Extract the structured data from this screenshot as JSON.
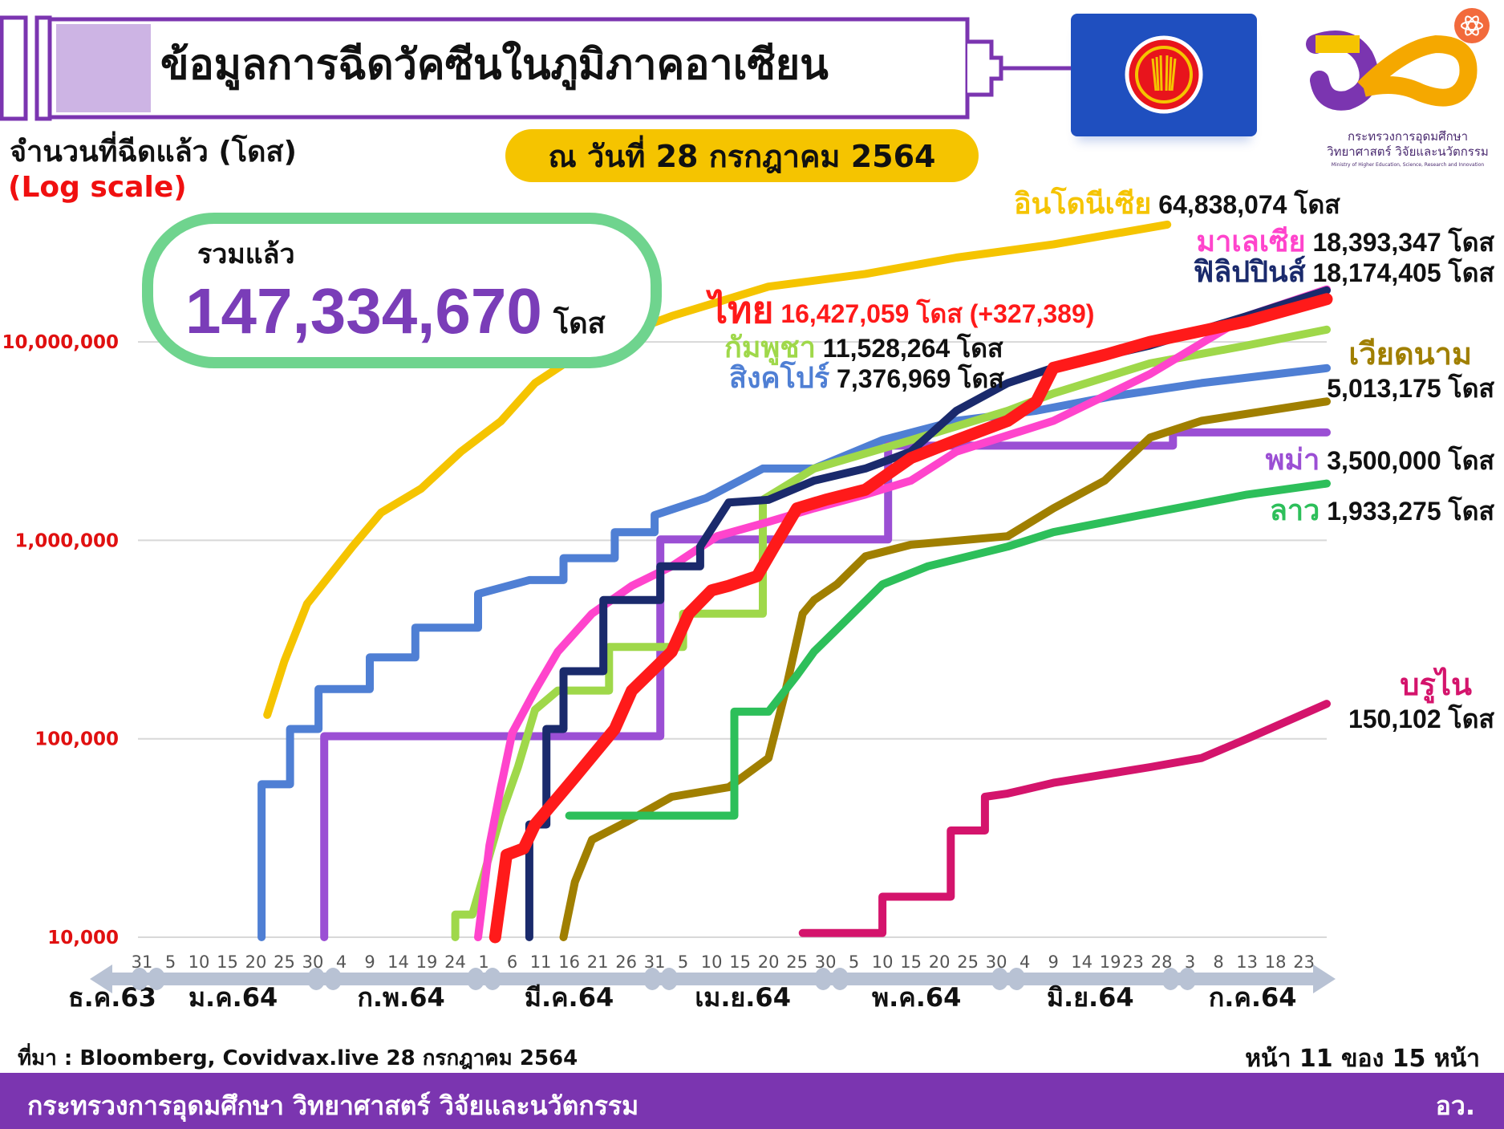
{
  "header": {
    "title": "ข้อมูลการฉีดวัคซีนในภูมิภาคอาเซียน",
    "date": "ณ วันที่ 28 กรกฎาคม 2564",
    "logo_text": [
      "กระทรวงการอุดมศึกษา",
      "วิทยาศาสตร์ วิจัยและนวัตกรรม",
      "Ministry of Higher Education, Science, Research and Innovation"
    ]
  },
  "total": {
    "label": "รวมแล้ว",
    "value": "147,334,670",
    "unit": "โดส"
  },
  "footer": {
    "source": "ที่มา : Bloomberg, Covidvax.live 28 กรกฎาคม 2564",
    "page": "หน้า 11 ของ 15 หน้า",
    "ministry": "กระทรวงการอุดมศึกษา วิทยาศาสตร์ วิจัยและนวัตกรรม",
    "abbr": "อว."
  },
  "colors": {
    "brand_purple": "#7b35b0",
    "total_border": "#6fd48e",
    "date_pill": "#f5c400",
    "asean_blue": "#1f4fbf"
  },
  "chart_data": {
    "type": "line",
    "ylabel": "จำนวนที่ฉีดแล้ว (โดส)",
    "yscale_note": "(Log scale)",
    "yscale": "log",
    "ylim": [
      10000,
      100000000
    ],
    "grid": true,
    "y_ticks": [
      {
        "value": 10000,
        "label": "10,000"
      },
      {
        "value": 100000,
        "label": "100,000"
      },
      {
        "value": 1000000,
        "label": "1,000,000"
      },
      {
        "value": 10000000,
        "label": "10,000,000"
      }
    ],
    "x_range": [
      "2020-12-31",
      "2021-07-27"
    ],
    "x_ticks": [
      {
        "date": "2020-12-31",
        "label": "31"
      },
      {
        "date": "2021-01-05",
        "label": "5"
      },
      {
        "date": "2021-01-10",
        "label": "10"
      },
      {
        "date": "2021-01-15",
        "label": "15"
      },
      {
        "date": "2021-01-20",
        "label": "20"
      },
      {
        "date": "2021-01-25",
        "label": "25"
      },
      {
        "date": "2021-01-30",
        "label": "30"
      },
      {
        "date": "2021-02-04",
        "label": "4"
      },
      {
        "date": "2021-02-09",
        "label": "9"
      },
      {
        "date": "2021-02-14",
        "label": "14"
      },
      {
        "date": "2021-02-19",
        "label": "19"
      },
      {
        "date": "2021-02-24",
        "label": "24"
      },
      {
        "date": "2021-03-01",
        "label": "1"
      },
      {
        "date": "2021-03-06",
        "label": "6"
      },
      {
        "date": "2021-03-11",
        "label": "11"
      },
      {
        "date": "2021-03-16",
        "label": "16"
      },
      {
        "date": "2021-03-21",
        "label": "21"
      },
      {
        "date": "2021-03-26",
        "label": "26"
      },
      {
        "date": "2021-03-31",
        "label": "31"
      },
      {
        "date": "2021-04-05",
        "label": "5"
      },
      {
        "date": "2021-04-10",
        "label": "10"
      },
      {
        "date": "2021-04-15",
        "label": "15"
      },
      {
        "date": "2021-04-20",
        "label": "20"
      },
      {
        "date": "2021-04-25",
        "label": "25"
      },
      {
        "date": "2021-04-30",
        "label": "30"
      },
      {
        "date": "2021-05-05",
        "label": "5"
      },
      {
        "date": "2021-05-10",
        "label": "10"
      },
      {
        "date": "2021-05-15",
        "label": "15"
      },
      {
        "date": "2021-05-20",
        "label": "20"
      },
      {
        "date": "2021-05-25",
        "label": "25"
      },
      {
        "date": "2021-05-30",
        "label": "30"
      },
      {
        "date": "2021-06-04",
        "label": "4"
      },
      {
        "date": "2021-06-09",
        "label": "9"
      },
      {
        "date": "2021-06-14",
        "label": "14"
      },
      {
        "date": "2021-06-19",
        "label": "19"
      },
      {
        "date": "2021-06-23",
        "label": "23"
      },
      {
        "date": "2021-06-28",
        "label": "28"
      },
      {
        "date": "2021-07-03",
        "label": "3"
      },
      {
        "date": "2021-07-08",
        "label": "8"
      },
      {
        "date": "2021-07-13",
        "label": "13"
      },
      {
        "date": "2021-07-18",
        "label": "18"
      },
      {
        "date": "2021-07-23",
        "label": "23"
      }
    ],
    "months": [
      {
        "label": "ธ.ค.63",
        "start": "2020-12-01",
        "end": "2020-12-31"
      },
      {
        "label": "ม.ค.64",
        "start": "2021-01-01",
        "end": "2021-01-31"
      },
      {
        "label": "ก.พ.64",
        "start": "2021-02-01",
        "end": "2021-02-28"
      },
      {
        "label": "มี.ค.64",
        "start": "2021-03-01",
        "end": "2021-03-31"
      },
      {
        "label": "เม.ย.64",
        "start": "2021-04-01",
        "end": "2021-04-30"
      },
      {
        "label": "พ.ค.64",
        "start": "2021-05-01",
        "end": "2021-05-31"
      },
      {
        "label": "มิ.ย.64",
        "start": "2021-06-01",
        "end": "2021-06-30"
      },
      {
        "label": "ก.ค.64",
        "start": "2021-07-01",
        "end": "2021-07-31"
      }
    ],
    "series": [
      {
        "key": "indonesia",
        "name": "อินโดนีเซีย",
        "total": "64,838,074",
        "unit": "โดส",
        "color": "#f5c400",
        "points": [
          [
            "2021-01-22",
            132000
          ],
          [
            "2021-01-25",
            246000
          ],
          [
            "2021-01-29",
            479000
          ],
          [
            "2021-02-06",
            933000
          ],
          [
            "2021-02-11",
            1380000
          ],
          [
            "2021-02-18",
            1820000
          ],
          [
            "2021-02-25",
            2800000
          ],
          [
            "2021-03-04",
            3980000
          ],
          [
            "2021-03-10",
            6200000
          ],
          [
            "2021-03-20",
            9600000
          ],
          [
            "2021-04-03",
            13500000
          ],
          [
            "2021-04-20",
            19000000
          ],
          [
            "2021-05-07",
            22000000
          ],
          [
            "2021-05-23",
            26600000
          ],
          [
            "2021-06-09",
            31000000
          ],
          [
            "2021-06-29",
            39000000
          ]
        ]
      },
      {
        "key": "singapore",
        "name": "สิงคโปร์",
        "total": "7,376,969",
        "unit": "โดส",
        "color": "#4f7fd4",
        "points": [
          [
            "2021-01-21",
            10000
          ],
          [
            "2021-01-21",
            59000
          ],
          [
            "2021-01-26",
            59000
          ],
          [
            "2021-01-26",
            112000
          ],
          [
            "2021-01-31",
            112000
          ],
          [
            "2021-01-31",
            178000
          ],
          [
            "2021-02-09",
            178000
          ],
          [
            "2021-02-09",
            257000
          ],
          [
            "2021-02-17",
            257000
          ],
          [
            "2021-02-17",
            363000
          ],
          [
            "2021-02-28",
            363000
          ],
          [
            "2021-02-28",
            537000
          ],
          [
            "2021-03-09",
            631000
          ],
          [
            "2021-03-15",
            631000
          ],
          [
            "2021-03-15",
            813000
          ],
          [
            "2021-03-24",
            813000
          ],
          [
            "2021-03-24",
            1100000
          ],
          [
            "2021-03-31",
            1100000
          ],
          [
            "2021-03-31",
            1340000
          ],
          [
            "2021-04-09",
            1630000
          ],
          [
            "2021-04-19",
            2300000
          ],
          [
            "2021-04-28",
            2300000
          ],
          [
            "2021-05-10",
            3200000
          ],
          [
            "2021-05-23",
            4000000
          ],
          [
            "2021-06-06",
            4500000
          ],
          [
            "2021-06-19",
            5300000
          ],
          [
            "2021-07-05",
            6200000
          ],
          [
            "2021-07-27",
            7376969
          ]
        ]
      },
      {
        "key": "myanmar",
        "name": "พม่า",
        "total": "3,500,000",
        "unit": "โดส",
        "color": "#9b4fd4",
        "points": [
          [
            "2021-02-01",
            10000
          ],
          [
            "2021-02-01",
            103000
          ],
          [
            "2021-04-01",
            103000
          ],
          [
            "2021-04-01",
            1010000
          ],
          [
            "2021-05-11",
            1010000
          ],
          [
            "2021-05-11",
            3000000
          ],
          [
            "2021-06-30",
            3000000
          ],
          [
            "2021-06-30",
            3500000
          ],
          [
            "2021-07-27",
            3500000
          ]
        ]
      },
      {
        "key": "cambodia",
        "name": "กัมพูชา",
        "total": "11,528,264",
        "unit": "โดส",
        "color": "#9fd84a",
        "points": [
          [
            "2021-02-24",
            10000
          ],
          [
            "2021-02-24",
            13000
          ],
          [
            "2021-02-27",
            13000
          ],
          [
            "2021-03-04",
            41000
          ],
          [
            "2021-03-07",
            72000
          ],
          [
            "2021-03-10",
            140000
          ],
          [
            "2021-03-14",
            175000
          ],
          [
            "2021-03-23",
            175000
          ],
          [
            "2021-03-23",
            290000
          ],
          [
            "2021-04-05",
            290000
          ],
          [
            "2021-04-05",
            427000
          ],
          [
            "2021-04-19",
            427000
          ],
          [
            "2021-04-19",
            1600000
          ],
          [
            "2021-04-28",
            2300000
          ],
          [
            "2021-05-15",
            3200000
          ],
          [
            "2021-06-01",
            4500000
          ],
          [
            "2021-06-09",
            5500000
          ],
          [
            "2021-06-26",
            7800000
          ],
          [
            "2021-07-13",
            9600000
          ],
          [
            "2021-07-27",
            11528264
          ]
        ]
      },
      {
        "key": "malaysia",
        "name": "มาเลเซีย",
        "total": "18,393,347",
        "unit": "โดส",
        "color": "#ff44cc",
        "points": [
          [
            "2021-02-28",
            10000
          ],
          [
            "2021-03-02",
            29000
          ],
          [
            "2021-03-04",
            57000
          ],
          [
            "2021-03-06",
            107000
          ],
          [
            "2021-03-10",
            175000
          ],
          [
            "2021-03-14",
            275000
          ],
          [
            "2021-03-20",
            427000
          ],
          [
            "2021-03-27",
            590000
          ],
          [
            "2021-04-03",
            740000
          ],
          [
            "2021-04-11",
            1050000
          ],
          [
            "2021-04-20",
            1240000
          ],
          [
            "2021-04-28",
            1450000
          ],
          [
            "2021-05-07",
            1700000
          ],
          [
            "2021-05-15",
            2000000
          ],
          [
            "2021-05-23",
            2800000
          ],
          [
            "2021-06-09",
            4000000
          ],
          [
            "2021-06-26",
            6900000
          ],
          [
            "2021-07-13",
            13500000
          ],
          [
            "2021-07-27",
            18393347
          ]
        ]
      },
      {
        "key": "vietnam",
        "name": "เวียดนาม",
        "total": "5,013,175",
        "unit": "โดส",
        "color": "#a07f00",
        "points": [
          [
            "2021-03-15",
            10000
          ],
          [
            "2021-03-17",
            19000
          ],
          [
            "2021-03-20",
            31000
          ],
          [
            "2021-03-26",
            38000
          ],
          [
            "2021-04-03",
            51000
          ],
          [
            "2021-04-13",
            57000
          ],
          [
            "2021-04-20",
            80000
          ],
          [
            "2021-04-23",
            175000
          ],
          [
            "2021-04-26",
            427000
          ],
          [
            "2021-04-28",
            500000
          ],
          [
            "2021-05-02",
            600000
          ],
          [
            "2021-05-07",
            830000
          ],
          [
            "2021-05-15",
            950000
          ],
          [
            "2021-06-01",
            1050000
          ],
          [
            "2021-06-09",
            1450000
          ],
          [
            "2021-06-18",
            2000000
          ],
          [
            "2021-06-26",
            3300000
          ],
          [
            "2021-07-05",
            4000000
          ],
          [
            "2021-07-27",
            5013175
          ]
        ]
      },
      {
        "key": "laos",
        "name": "ลาว",
        "total": "1,933,275",
        "unit": "โดส",
        "color": "#2dbf5a",
        "points": [
          [
            "2021-03-16",
            41000
          ],
          [
            "2021-04-14",
            41000
          ],
          [
            "2021-04-14",
            137000
          ],
          [
            "2021-04-20",
            137000
          ],
          [
            "2021-04-25",
            209000
          ],
          [
            "2021-04-28",
            275000
          ],
          [
            "2021-05-03",
            380000
          ],
          [
            "2021-05-10",
            600000
          ],
          [
            "2021-05-18",
            740000
          ],
          [
            "2021-06-01",
            930000
          ],
          [
            "2021-06-09",
            1100000
          ],
          [
            "2021-06-26",
            1370000
          ],
          [
            "2021-07-13",
            1700000
          ],
          [
            "2021-07-27",
            1933275
          ]
        ]
      },
      {
        "key": "brunei",
        "name": "บรูไน",
        "total": "150,102",
        "unit": "โดส",
        "color": "#d4146c",
        "points": [
          [
            "2021-04-26",
            10500
          ],
          [
            "2021-05-10",
            10500
          ],
          [
            "2021-05-10",
            16000
          ],
          [
            "2021-05-22",
            16000
          ],
          [
            "2021-05-22",
            34500
          ],
          [
            "2021-05-28",
            34500
          ],
          [
            "2021-05-28",
            51000
          ],
          [
            "2021-06-01",
            53000
          ],
          [
            "2021-06-09",
            60000
          ],
          [
            "2021-06-26",
            72000
          ],
          [
            "2021-07-05",
            80000
          ],
          [
            "2021-07-13",
            100000
          ],
          [
            "2021-07-27",
            150102
          ]
        ]
      },
      {
        "key": "philippines",
        "name": "ฟิลิปปินส์",
        "total": "18,174,405",
        "unit": "โดส",
        "color": "#1a2a6c",
        "points": [
          [
            "2021-03-09",
            10000
          ],
          [
            "2021-03-09",
            37000
          ],
          [
            "2021-03-12",
            37000
          ],
          [
            "2021-03-12",
            112000
          ],
          [
            "2021-03-15",
            112000
          ],
          [
            "2021-03-15",
            219000
          ],
          [
            "2021-03-22",
            219000
          ],
          [
            "2021-03-22",
            500000
          ],
          [
            "2021-04-01",
            500000
          ],
          [
            "2021-04-01",
            740000
          ],
          [
            "2021-04-08",
            740000
          ],
          [
            "2021-04-08",
            930000
          ],
          [
            "2021-04-13",
            1550000
          ],
          [
            "2021-04-20",
            1600000
          ],
          [
            "2021-04-28",
            2000000
          ],
          [
            "2021-05-07",
            2300000
          ],
          [
            "2021-05-15",
            2800000
          ],
          [
            "2021-05-23",
            4500000
          ],
          [
            "2021-06-01",
            6200000
          ],
          [
            "2021-06-09",
            7400000
          ],
          [
            "2021-06-26",
            9600000
          ],
          [
            "2021-07-13",
            13500000
          ],
          [
            "2021-07-27",
            18174405
          ]
        ]
      },
      {
        "key": "thailand",
        "name": "ไทย",
        "total": "16,427,059",
        "unit": "โดส",
        "daily_change": "(+327,389)",
        "color": "#ff1a1a",
        "points": [
          [
            "2021-03-03",
            10000
          ],
          [
            "2021-03-05",
            26000
          ],
          [
            "2021-03-08",
            28000
          ],
          [
            "2021-03-10",
            37000
          ],
          [
            "2021-03-17",
            64000
          ],
          [
            "2021-03-24",
            112000
          ],
          [
            "2021-03-27",
            175000
          ],
          [
            "2021-04-03",
            275000
          ],
          [
            "2021-04-06",
            427000
          ],
          [
            "2021-04-10",
            560000
          ],
          [
            "2021-04-13",
            590000
          ],
          [
            "2021-04-18",
            660000
          ],
          [
            "2021-04-21",
            930000
          ],
          [
            "2021-04-25",
            1450000
          ],
          [
            "2021-04-30",
            1600000
          ],
          [
            "2021-05-07",
            1800000
          ],
          [
            "2021-05-15",
            2600000
          ],
          [
            "2021-05-23",
            3200000
          ],
          [
            "2021-06-01",
            4000000
          ],
          [
            "2021-06-06",
            5000000
          ],
          [
            "2021-06-09",
            7400000
          ],
          [
            "2021-06-18",
            8600000
          ],
          [
            "2021-06-26",
            10000000
          ],
          [
            "2021-07-13",
            12700000
          ],
          [
            "2021-07-27",
            16427059
          ]
        ]
      }
    ]
  }
}
